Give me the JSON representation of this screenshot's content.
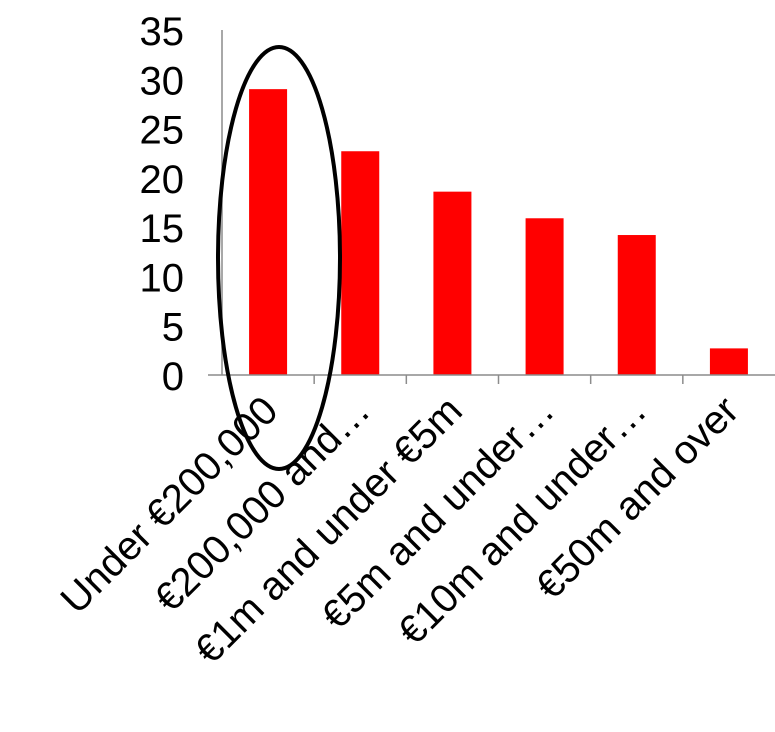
{
  "chart_data": {
    "type": "bar",
    "categories": [
      "Under €200,000",
      "€200,000 and…",
      "€1m and under €5m",
      "€5m and under…",
      "€10m and under…",
      "€50m and over"
    ],
    "values": [
      29,
      22.7,
      18.6,
      15.9,
      14.2,
      2.7
    ],
    "ylim": [
      0,
      35
    ],
    "yticks": [
      "0",
      "5",
      "10",
      "15",
      "20",
      "25",
      "30",
      "35"
    ],
    "title": "",
    "xlabel": "",
    "ylabel": "",
    "grid": false,
    "legend": "none",
    "bar_color": "#ff0000",
    "highlight": "ellipse around first category"
  }
}
